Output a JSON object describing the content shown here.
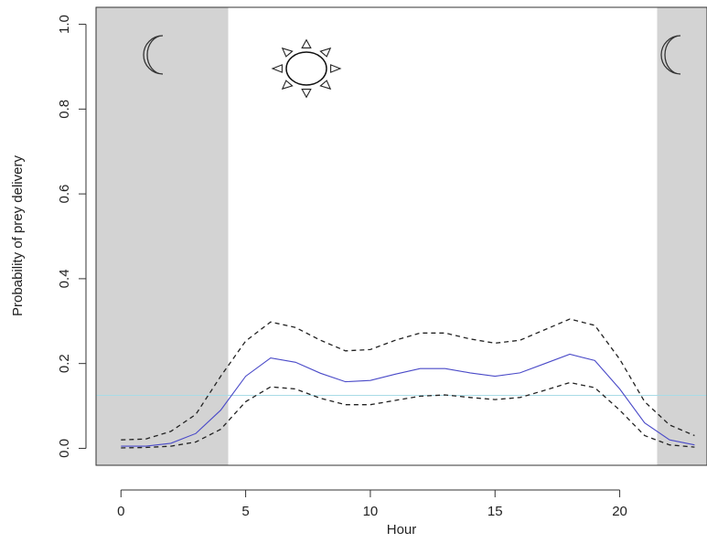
{
  "chart_data": {
    "type": "line",
    "xlabel": "Hour",
    "ylabel": "Probability of prey delivery",
    "xlim": [
      -1,
      23.5
    ],
    "ylim": [
      -0.04,
      1.04
    ],
    "x_ticks": [
      "0",
      "5",
      "10",
      "15",
      "20"
    ],
    "y_ticks": [
      "0.0",
      "0.2",
      "0.4",
      "0.6",
      "0.8",
      "1.0"
    ],
    "night_shading": [
      [
        -1,
        4.3
      ],
      [
        21.5,
        23.5
      ]
    ],
    "night_color": "#d3d3d3",
    "night_icon": "moon-icon",
    "day_icon": "sun-icon",
    "reference_line": {
      "y": 0.125,
      "color": "#a8dbe6"
    },
    "x": [
      0,
      1,
      2,
      3,
      4,
      5,
      6,
      7,
      8,
      9,
      10,
      11,
      12,
      13,
      14,
      15,
      16,
      17,
      18,
      19,
      20,
      21,
      22,
      23
    ],
    "series": [
      {
        "role": "estimate",
        "color": "#4a4ac8",
        "style": "solid",
        "values": [
          0.005,
          0.005,
          0.012,
          0.035,
          0.09,
          0.17,
          0.213,
          0.203,
          0.177,
          0.157,
          0.16,
          0.175,
          0.188,
          0.188,
          0.178,
          0.17,
          0.178,
          0.2,
          0.222,
          0.207,
          0.14,
          0.06,
          0.02,
          0.008
        ]
      },
      {
        "role": "upper",
        "color": "#222222",
        "style": "dashed",
        "values": [
          0.02,
          0.022,
          0.04,
          0.08,
          0.17,
          0.253,
          0.298,
          0.285,
          0.255,
          0.23,
          0.233,
          0.255,
          0.272,
          0.272,
          0.258,
          0.248,
          0.255,
          0.28,
          0.305,
          0.29,
          0.21,
          0.11,
          0.055,
          0.03
        ]
      },
      {
        "role": "lower",
        "color": "#222222",
        "style": "dashed",
        "values": [
          0.001,
          0.002,
          0.005,
          0.015,
          0.045,
          0.11,
          0.145,
          0.14,
          0.118,
          0.103,
          0.103,
          0.113,
          0.123,
          0.126,
          0.12,
          0.115,
          0.12,
          0.137,
          0.155,
          0.143,
          0.09,
          0.03,
          0.008,
          0.003
        ]
      }
    ]
  }
}
